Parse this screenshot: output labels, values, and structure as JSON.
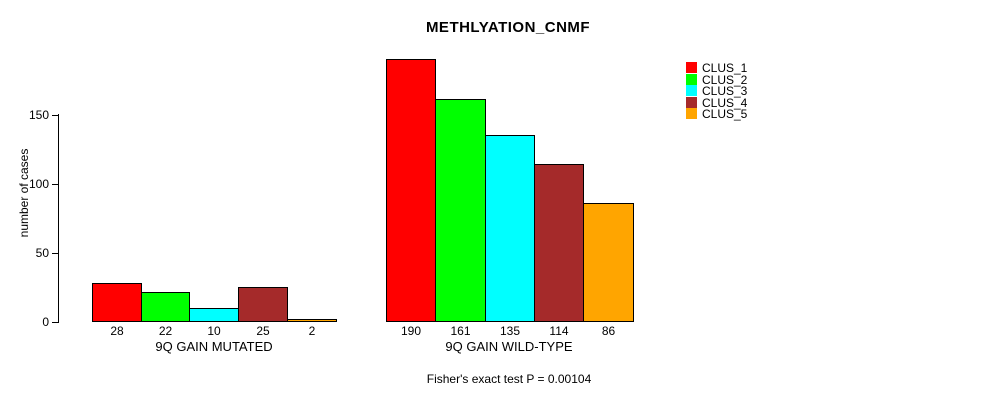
{
  "chart_data": {
    "type": "bar",
    "title": "METHLYATION_CNMF",
    "ylabel": "number of cases",
    "footnote": "Fisher's exact test P = 0.00104",
    "ylim": [
      0,
      150
    ],
    "yticks": [
      0,
      50,
      100,
      150
    ],
    "grid": false,
    "legend": {
      "position": "right",
      "entries": [
        {
          "label": "CLUS_1",
          "color": "#FF0000"
        },
        {
          "label": "CLUS_2",
          "color": "#00FF00"
        },
        {
          "label": "CLUS_3",
          "color": "#00FFFF"
        },
        {
          "label": "CLUS_4",
          "color": "#A52A2A"
        },
        {
          "label": "CLUS_5",
          "color": "#FFA500"
        }
      ]
    },
    "series_colors": [
      "#FF0000",
      "#00FF00",
      "#00FFFF",
      "#A52A2A",
      "#FFA500"
    ],
    "categories": [
      "9Q GAIN MUTATED",
      "9Q GAIN WILD-TYPE"
    ],
    "groups": [
      {
        "label": "9Q GAIN MUTATED",
        "values": [
          28,
          22,
          10,
          25,
          2
        ]
      },
      {
        "label": "9Q GAIN WILD-TYPE",
        "values": [
          190,
          161,
          135,
          114,
          86
        ]
      }
    ],
    "bar_value_labels": [
      [
        28,
        22,
        10,
        25,
        2
      ],
      [
        190,
        161,
        135,
        114,
        86
      ]
    ]
  }
}
